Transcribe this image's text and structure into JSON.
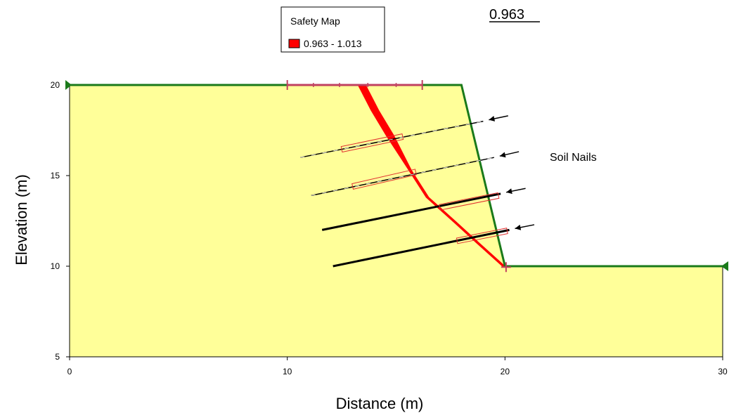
{
  "chart_data": {
    "type": "slope_stability_section",
    "xlabel": "Distance (m)",
    "ylabel": "Elevation (m)",
    "xlim": [
      0,
      30
    ],
    "ylim": [
      5,
      20
    ],
    "x_ticks": [
      0,
      10,
      20,
      30
    ],
    "y_ticks": [
      5,
      10,
      15,
      20
    ],
    "region_color": "#ffff99",
    "boundary_color": "#1a7a1a",
    "ground_surface": [
      [
        0,
        20
      ],
      [
        18,
        20
      ],
      [
        20,
        10
      ],
      [
        30,
        10
      ]
    ],
    "slip_surface": [
      [
        13.6,
        20
      ],
      [
        14.2,
        18.6
      ],
      [
        14.9,
        17.2
      ],
      [
        15.7,
        15.3
      ],
      [
        16.5,
        13.8
      ],
      [
        17.8,
        12.4
      ],
      [
        18.8,
        11.3
      ],
      [
        20,
        10
      ]
    ],
    "slip_color": "#ff0000",
    "nails": [
      {
        "start": [
          10.6,
          16.0
        ],
        "end": [
          19.0,
          18.0
        ],
        "bonded": [
          12.5,
          16.45,
          15.3,
          17.15
        ],
        "heavy": false
      },
      {
        "start": [
          11.1,
          13.9
        ],
        "end": [
          19.5,
          16.0
        ],
        "bonded": [
          13.0,
          14.4,
          15.9,
          15.2
        ],
        "heavy": false
      },
      {
        "start": [
          11.6,
          12.0
        ],
        "end": [
          19.8,
          14.0
        ],
        "bonded": [
          17.0,
          13.25,
          19.7,
          13.9
        ],
        "heavy": true
      },
      {
        "start": [
          12.1,
          10.0
        ],
        "end": [
          20.2,
          12.0
        ],
        "bonded": [
          17.8,
          11.4,
          20.1,
          11.95
        ],
        "heavy": true
      }
    ],
    "entry_exit_range": [
      10,
      16.2
    ],
    "entry_ticks": [
      11.2,
      12.4,
      13.7,
      15.0
    ],
    "exit_point": [
      20.05,
      9.95
    ],
    "fos_label": "0.963",
    "center_point": [
      19.1,
      26.1
    ],
    "annotation": "Soil Nails",
    "legend": {
      "title": "Safety Map",
      "entries": [
        {
          "label": "0.963 - 1.013",
          "color": "#ff0000"
        }
      ]
    }
  }
}
